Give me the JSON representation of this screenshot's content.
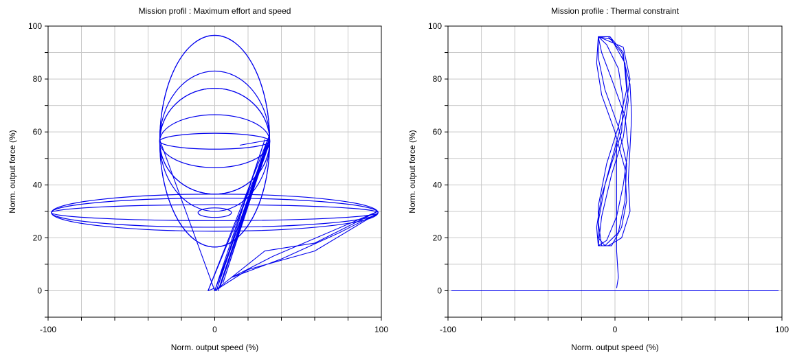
{
  "chart_data": [
    {
      "type": "line",
      "title": "Mission profil : Maximum effort and speed",
      "xlabel": "Norm. output speed (%)",
      "ylabel": "Norm. output force (%)",
      "xlim": [
        -100,
        100
      ],
      "ylim": [
        -10,
        100
      ],
      "xticks": [
        "-100",
        "0",
        "100"
      ],
      "yticks": [
        "0",
        "20",
        "40",
        "60",
        "80",
        "100"
      ],
      "grid": true,
      "color": "#0000ee",
      "series": [
        {
          "shape": "ellipse",
          "center": [
            0,
            56.5
          ],
          "rx": 33,
          "ry": 40
        },
        {
          "shape": "ellipse",
          "center": [
            0,
            56.5
          ],
          "rx": 33,
          "ry": 26.5
        },
        {
          "shape": "ellipse",
          "center": [
            0,
            56.5
          ],
          "rx": 33,
          "ry": 20
        },
        {
          "shape": "ellipse",
          "center": [
            0,
            56.5
          ],
          "rx": 33,
          "ry": 10
        },
        {
          "shape": "ellipse",
          "center": [
            0,
            56.5
          ],
          "rx": 33,
          "ry": 3
        },
        {
          "shape": "ellipse",
          "center": [
            0,
            56.5
          ],
          "rx": 33,
          "ry": 20
        },
        {
          "shape": "ellipse",
          "center": [
            0,
            29.5
          ],
          "rx": 98,
          "ry": 7
        },
        {
          "shape": "ellipse",
          "center": [
            0,
            29.5
          ],
          "rx": 98,
          "ry": 3
        },
        {
          "shape": "ellipse",
          "center": [
            0,
            29.5
          ],
          "rx": 98,
          "ry": 5.5
        },
        {
          "shape": "ellipse",
          "center": [
            0,
            29.5
          ],
          "rx": 10,
          "ry": 1.8
        },
        {
          "shape": "ellipse",
          "center": [
            0,
            56.5
          ],
          "rx": 33,
          "ry": 40
        },
        {
          "shape": "polyline",
          "points": [
            [
              0,
              0
            ],
            [
              -33,
              57
            ],
            [
              0,
              0
            ],
            [
              33,
              57
            ],
            [
              3,
              1
            ],
            [
              33,
              58
            ],
            [
              5,
              3
            ],
            [
              32,
              55
            ],
            [
              -4,
              0
            ],
            [
              0,
              1
            ]
          ]
        },
        {
          "shape": "polyline",
          "points": [
            [
              -4,
              0
            ],
            [
              33,
              59
            ],
            [
              1,
              0
            ],
            [
              30,
              57
            ],
            [
              0,
              0
            ],
            [
              33,
              56
            ],
            [
              2,
              0
            ],
            [
              31,
              55
            ]
          ]
        },
        {
          "shape": "polyline",
          "points": [
            [
              0,
              0
            ],
            [
              30,
              15
            ],
            [
              60,
              18
            ],
            [
              98,
              30
            ],
            [
              35,
              13
            ],
            [
              10,
              5
            ],
            [
              40,
              12
            ],
            [
              75,
              22
            ],
            [
              97,
              29
            ],
            [
              60,
              15
            ],
            [
              20,
              8
            ],
            [
              0,
              0
            ]
          ]
        },
        {
          "shape": "polyline",
          "points": [
            [
              15,
              55
            ],
            [
              33,
              57
            ]
          ]
        }
      ]
    },
    {
      "type": "line",
      "title": "Mission profile : Thermal constraint",
      "xlabel": "Norm. output speed (%)",
      "ylabel": "Norm. output force (%)",
      "xlim": [
        -100,
        100
      ],
      "ylim": [
        -10,
        100
      ],
      "xticks": [
        "-100",
        "0",
        "100"
      ],
      "yticks": [
        "0",
        "20",
        "40",
        "60",
        "80",
        "100"
      ],
      "grid": true,
      "color": "#0000ee",
      "series": [
        {
          "shape": "polyline",
          "points": [
            [
              -98,
              0
            ],
            [
              98,
              0
            ]
          ]
        },
        {
          "shape": "polyline",
          "points": [
            [
              1,
              1
            ],
            [
              2,
              5
            ],
            [
              1,
              15
            ],
            [
              1,
              30
            ],
            [
              1,
              45
            ],
            [
              1,
              56
            ]
          ]
        },
        {
          "shape": "polyline",
          "points": [
            [
              -10,
              96
            ],
            [
              -4,
              96
            ],
            [
              4,
              90
            ],
            [
              9,
              78
            ],
            [
              10,
              66
            ],
            [
              9,
              54
            ],
            [
              8,
              42
            ],
            [
              9,
              30
            ],
            [
              4,
              20
            ],
            [
              -4,
              17
            ],
            [
              -10,
              17
            ],
            [
              -11,
              24
            ],
            [
              -8,
              36
            ],
            [
              -2,
              48
            ],
            [
              4,
              60
            ],
            [
              5,
              72
            ],
            [
              2,
              84
            ],
            [
              -5,
              93
            ],
            [
              -10,
              96
            ],
            [
              -8,
              90
            ],
            [
              -2,
              80
            ],
            [
              6,
              66
            ],
            [
              8,
              54
            ],
            [
              5,
              40
            ],
            [
              1,
              28
            ],
            [
              -5,
              19
            ],
            [
              -10,
              17
            ],
            [
              -8,
              28
            ],
            [
              -2,
              44
            ],
            [
              5,
              58
            ],
            [
              8,
              72
            ],
            [
              6,
              86
            ],
            [
              -2,
              95
            ],
            [
              -10,
              96
            ],
            [
              -10,
              88
            ],
            [
              -6,
              76
            ],
            [
              2,
              62
            ],
            [
              7,
              48
            ],
            [
              6,
              34
            ],
            [
              2,
              22
            ],
            [
              -6,
              17
            ],
            [
              -10,
              20
            ],
            [
              -10,
              32
            ],
            [
              -5,
              48
            ],
            [
              2,
              62
            ],
            [
              7,
              76
            ],
            [
              5,
              90
            ],
            [
              -3,
              96
            ],
            [
              -10,
              96
            ],
            [
              -11,
              86
            ],
            [
              -8,
              74
            ],
            [
              0,
              60
            ],
            [
              6,
              46
            ],
            [
              7,
              34
            ],
            [
              4,
              24
            ],
            [
              -2,
              17
            ],
            [
              -8,
              17
            ],
            [
              -10,
              26
            ],
            [
              -6,
              40
            ],
            [
              0,
              54
            ],
            [
              6,
              68
            ],
            [
              9,
              80
            ],
            [
              5,
              92
            ],
            [
              -10,
              96
            ]
          ]
        }
      ]
    }
  ]
}
